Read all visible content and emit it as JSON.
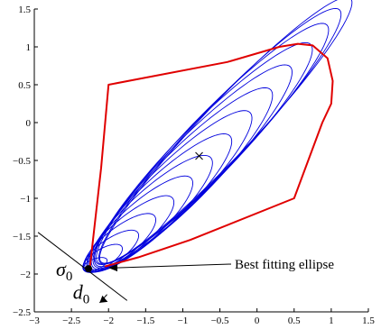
{
  "chart_data": {
    "type": "line",
    "title": "",
    "xlabel": "",
    "ylabel": "",
    "xlim": [
      -3,
      1.5
    ],
    "ylim": [
      -2.5,
      1.5
    ],
    "x_ticks": [
      "−3",
      "−2.5",
      "−2",
      "−1.5",
      "−1",
      "−0.5",
      "0",
      "0.5",
      "1",
      "1.5"
    ],
    "y_ticks": [
      "1.5",
      "1",
      "0.5",
      "0",
      "−0.5",
      "−1",
      "−1.5",
      "−2",
      "−2.5"
    ],
    "x_tick_values": [
      -3,
      -2.5,
      -2,
      -1.5,
      -1,
      -0.5,
      0,
      0.5,
      1,
      1.5
    ],
    "y_tick_values": [
      1.5,
      1,
      0.5,
      0,
      -0.5,
      -1,
      -1.5,
      -2,
      -2.5
    ],
    "grid": false,
    "series": [
      {
        "color": "#e00000",
        "kind": "boundary",
        "x": [
          -2.25,
          -2.1,
          -2.0,
          -0.4,
          0.3,
          0.55,
          0.75,
          0.95,
          1.02,
          1.0,
          0.88,
          0.5,
          -0.9,
          -1.6,
          -2.05
        ],
        "y": [
          -1.9,
          -0.6,
          0.5,
          0.8,
          1.0,
          1.04,
          1.02,
          0.85,
          0.55,
          0.25,
          0.0,
          -1.0,
          -1.55,
          -1.78,
          -1.9
        ]
      },
      {
        "color": "#0000dd",
        "kind": "ellipse-family",
        "anchor": [
          -2.27,
          -1.93
        ],
        "ellipses": [
          {
            "cx": -2.18,
            "cy": -1.87,
            "a": 0.17,
            "b": 0.07,
            "angle_deg": 20
          },
          {
            "cx": -2.08,
            "cy": -1.79,
            "a": 0.3,
            "b": 0.12,
            "angle_deg": 30
          },
          {
            "cx": -1.97,
            "cy": -1.7,
            "a": 0.44,
            "b": 0.16,
            "angle_deg": 34
          },
          {
            "cx": -1.85,
            "cy": -1.59,
            "a": 0.59,
            "b": 0.2,
            "angle_deg": 37
          },
          {
            "cx": -1.72,
            "cy": -1.47,
            "a": 0.75,
            "b": 0.23,
            "angle_deg": 39
          },
          {
            "cx": -1.58,
            "cy": -1.34,
            "a": 0.92,
            "b": 0.26,
            "angle_deg": 41
          },
          {
            "cx": -1.44,
            "cy": -1.2,
            "a": 1.1,
            "b": 0.29,
            "angle_deg": 42
          },
          {
            "cx": -1.3,
            "cy": -1.05,
            "a": 1.28,
            "b": 0.31,
            "angle_deg": 43
          },
          {
            "cx": -1.15,
            "cy": -0.89,
            "a": 1.47,
            "b": 0.33,
            "angle_deg": 44
          },
          {
            "cx": -1.0,
            "cy": -0.73,
            "a": 1.66,
            "b": 0.35,
            "angle_deg": 44.5
          },
          {
            "cx": -0.86,
            "cy": -0.57,
            "a": 1.85,
            "b": 0.36,
            "angle_deg": 45
          },
          {
            "cx": -0.72,
            "cy": -0.41,
            "a": 2.04,
            "b": 0.37,
            "angle_deg": 45
          },
          {
            "cx": -0.6,
            "cy": -0.28,
            "a": 2.2,
            "b": 0.37,
            "angle_deg": 45.5
          },
          {
            "cx": -0.5,
            "cy": -0.18,
            "a": 2.32,
            "b": 0.36,
            "angle_deg": 46
          },
          {
            "cx": -0.42,
            "cy": -0.1,
            "a": 2.42,
            "b": 0.35,
            "angle_deg": 46
          }
        ]
      }
    ],
    "cross_marker": {
      "x": -0.78,
      "y": -0.44
    },
    "anchor_point": {
      "x": -2.27,
      "y": -1.93
    },
    "tangent_line": {
      "x1": -2.95,
      "y1": -1.45,
      "x2": -1.75,
      "y2": -2.35
    },
    "annotations": {
      "sigma_main": "σ",
      "sigma_sub": "0",
      "d_main": "d",
      "d_sub": "0",
      "best_fit": "Best fitting ellipse"
    }
  }
}
